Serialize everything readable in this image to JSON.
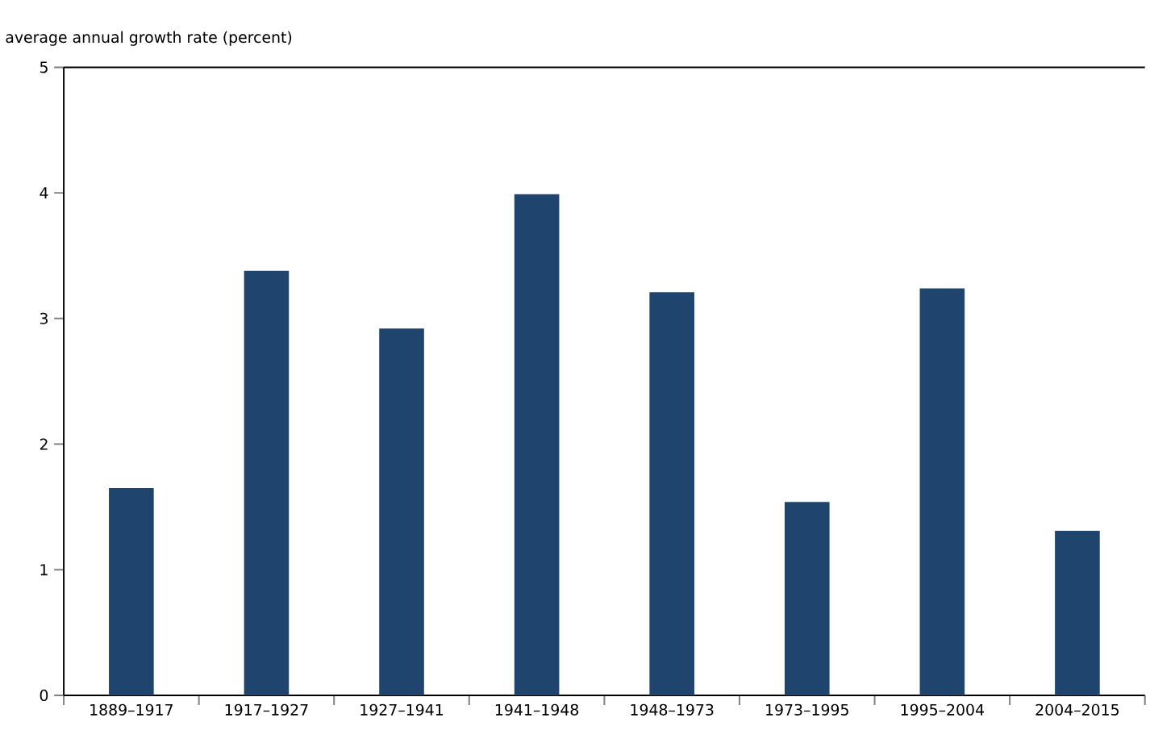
{
  "chart_data": {
    "type": "bar",
    "ylabel": "average annual growth rate (percent)",
    "categories": [
      "1889–1917",
      "1917–1927",
      "1927–1941",
      "1941–1948",
      "1948–1973",
      "1973–1995",
      "1995–2004",
      "2004–2015"
    ],
    "values": [
      1.65,
      3.38,
      2.92,
      3.99,
      3.21,
      1.54,
      3.24,
      1.31
    ],
    "color": "#1f446d",
    "ylim": [
      0,
      5
    ],
    "yticks": [
      0,
      1,
      2,
      3,
      4,
      5
    ]
  }
}
